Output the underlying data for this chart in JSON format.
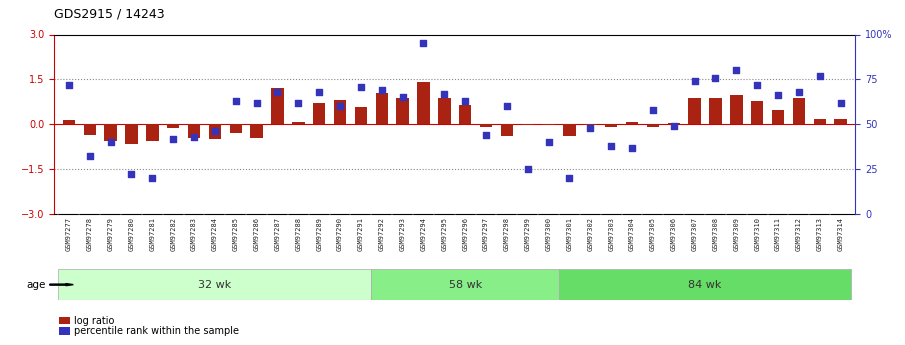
{
  "title": "GDS2915 / 14243",
  "samples": [
    "GSM97277",
    "GSM97278",
    "GSM97279",
    "GSM97280",
    "GSM97281",
    "GSM97282",
    "GSM97283",
    "GSM97284",
    "GSM97285",
    "GSM97286",
    "GSM97287",
    "GSM97288",
    "GSM97289",
    "GSM97290",
    "GSM97291",
    "GSM97292",
    "GSM97293",
    "GSM97294",
    "GSM97295",
    "GSM97296",
    "GSM97297",
    "GSM97298",
    "GSM97299",
    "GSM97300",
    "GSM97301",
    "GSM97302",
    "GSM97303",
    "GSM97304",
    "GSM97305",
    "GSM97306",
    "GSM97307",
    "GSM97308",
    "GSM97309",
    "GSM97310",
    "GSM97311",
    "GSM97312",
    "GSM97313",
    "GSM97314"
  ],
  "log_ratio": [
    0.15,
    -0.35,
    -0.55,
    -0.65,
    -0.55,
    -0.12,
    -0.45,
    -0.48,
    -0.28,
    -0.45,
    1.2,
    0.08,
    0.72,
    0.82,
    0.58,
    1.05,
    0.88,
    1.42,
    0.88,
    0.65,
    -0.08,
    -0.38,
    -0.04,
    -0.04,
    -0.38,
    -0.04,
    -0.08,
    0.08,
    -0.08,
    0.04,
    0.88,
    0.88,
    0.98,
    0.78,
    0.48,
    0.88,
    0.18,
    0.18
  ],
  "percentile": [
    72,
    32,
    40,
    22,
    20,
    42,
    43,
    46,
    63,
    62,
    68,
    62,
    68,
    60,
    71,
    69,
    65,
    95,
    67,
    63,
    44,
    60,
    25,
    40,
    20,
    48,
    38,
    37,
    58,
    49,
    74,
    76,
    80,
    72,
    66,
    68,
    77,
    62
  ],
  "groups": [
    {
      "label": "32 wk",
      "start": 0,
      "end": 15,
      "color": "#ccffcc"
    },
    {
      "label": "58 wk",
      "start": 15,
      "end": 24,
      "color": "#88ee88"
    },
    {
      "label": "84 wk",
      "start": 24,
      "end": 38,
      "color": "#66dd66"
    }
  ],
  "ylim": [
    -3,
    3
  ],
  "yticks_left": [
    -3,
    -1.5,
    0,
    1.5,
    3
  ],
  "yticks_right": [
    0,
    25,
    50,
    75,
    100
  ],
  "bar_color": "#aa2211",
  "dot_color": "#3333bb",
  "hline_color": "#cc0000",
  "dotted_color": "#888888",
  "fig_bg": "#ffffff",
  "label_area_bg": "#dddddd",
  "group_colors": [
    "#ccffcc",
    "#88ee88",
    "#66dd66"
  ]
}
